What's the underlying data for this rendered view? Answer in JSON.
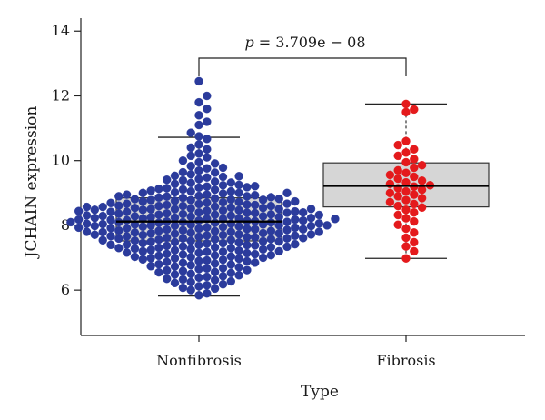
{
  "chart_data": {
    "type": "box-swarm",
    "xlabel": "Type",
    "ylabel": "JCHAIN expression",
    "ylim": [
      4.6,
      14.4
    ],
    "yticks": [
      "6",
      "8",
      "10",
      "12",
      "14"
    ],
    "categories": [
      "Nonfibrosis",
      "Fibrosis"
    ],
    "annotation": {
      "prefix": "p",
      "text": " = 3.709e − 08"
    },
    "groups": [
      {
        "name": "Nonfibrosis",
        "color": "#2b3b9c",
        "box": {
          "whisker_low": 5.82,
          "q1": 7.52,
          "median": 8.12,
          "q3": 8.85,
          "whisker_high": 10.72
        },
        "values": [
          5.84,
          5.9,
          6.0,
          6.07,
          6.12,
          6.18,
          6.22,
          6.27,
          6.31,
          6.35,
          6.39,
          6.43,
          6.46,
          6.5,
          6.53,
          6.56,
          6.59,
          6.62,
          6.65,
          6.68,
          6.71,
          6.74,
          6.77,
          6.8,
          6.82,
          6.85,
          6.87,
          6.9,
          6.92,
          6.95,
          6.97,
          6.99,
          7.02,
          7.04,
          7.06,
          7.08,
          7.1,
          7.12,
          7.14,
          7.16,
          7.18,
          7.2,
          7.22,
          7.24,
          7.26,
          7.28,
          7.3,
          7.32,
          7.33,
          7.35,
          7.37,
          7.39,
          7.4,
          7.42,
          7.44,
          7.45,
          7.47,
          7.49,
          7.5,
          7.52,
          7.53,
          7.55,
          7.56,
          7.58,
          7.59,
          7.61,
          7.62,
          7.64,
          7.65,
          7.67,
          7.68,
          7.7,
          7.71,
          7.72,
          7.74,
          7.75,
          7.76,
          7.78,
          7.79,
          7.8,
          7.82,
          7.83,
          7.84,
          7.86,
          7.87,
          7.88,
          7.89,
          7.91,
          7.92,
          7.93,
          7.94,
          7.96,
          7.97,
          7.98,
          7.99,
          8.0,
          8.02,
          8.03,
          8.04,
          8.05,
          8.06,
          8.08,
          8.09,
          8.1,
          8.11,
          8.12,
          8.14,
          8.15,
          8.16,
          8.17,
          8.18,
          8.2,
          8.21,
          8.22,
          8.23,
          8.24,
          8.26,
          8.27,
          8.28,
          8.29,
          8.3,
          8.32,
          8.33,
          8.34,
          8.35,
          8.37,
          8.38,
          8.39,
          8.4,
          8.42,
          8.43,
          8.44,
          8.46,
          8.47,
          8.48,
          8.5,
          8.51,
          8.52,
          8.54,
          8.55,
          8.57,
          8.58,
          8.6,
          8.61,
          8.63,
          8.64,
          8.66,
          8.67,
          8.69,
          8.71,
          8.72,
          8.74,
          8.76,
          8.78,
          8.79,
          8.81,
          8.83,
          8.85,
          8.87,
          8.89,
          8.91,
          8.93,
          8.95,
          8.98,
          9.0,
          9.02,
          9.05,
          9.07,
          9.1,
          9.13,
          9.15,
          9.18,
          9.21,
          9.25,
          9.28,
          9.31,
          9.35,
          9.39,
          9.43,
          9.48,
          9.53,
          9.58,
          9.63,
          9.69,
          9.76,
          9.83,
          9.91,
          10.0,
          10.1,
          10.22,
          10.35,
          10.5,
          10.67,
          10.86,
          11.1,
          11.4,
          11.8,
          12.45,
          6.05,
          6.15,
          6.25,
          6.33,
          6.41,
          6.48,
          6.55,
          6.61,
          6.67,
          6.73,
          6.79,
          6.84,
          6.89,
          6.94,
          6.98,
          7.03,
          7.07,
          7.11,
          7.15,
          7.19,
          7.23,
          7.27,
          7.31,
          7.34,
          7.38,
          7.41,
          7.45,
          7.48,
          7.51,
          7.54,
          7.57,
          7.6,
          7.63,
          7.66,
          7.69,
          7.72,
          7.75,
          7.77,
          7.8,
          7.83,
          7.85,
          7.88,
          7.9,
          7.93,
          7.95,
          7.98,
          8.0,
          8.03,
          8.05,
          8.08,
          8.1,
          8.13,
          8.15,
          8.18,
          8.2,
          8.23,
          8.25,
          8.28,
          8.31,
          8.33,
          8.36,
          8.39,
          8.42,
          8.45,
          8.48,
          8.51,
          8.54,
          8.57,
          8.6,
          8.63,
          8.67,
          8.7,
          8.74,
          8.78,
          8.82,
          8.86,
          8.9,
          8.95,
          9.0,
          9.05,
          9.11,
          9.17,
          9.24,
          9.32,
          9.41,
          9.52,
          9.64,
          9.78,
          9.95,
          10.15,
          10.4,
          10.75,
          11.2,
          11.6,
          12.0,
          7.0,
          7.2,
          7.4,
          7.6,
          7.8,
          8.0,
          8.2,
          8.4,
          8.6,
          8.8,
          9.0,
          9.2,
          9.5,
          7.3,
          7.7,
          8.1,
          8.5,
          8.9
        ]
      },
      {
        "name": "Fibrosis",
        "color": "#e41a1c",
        "box": {
          "whisker_low": 6.98,
          "q1": 8.57,
          "median": 9.22,
          "q3": 9.93,
          "whisker_high": 11.75
        },
        "values": [
          6.98,
          7.2,
          7.35,
          7.48,
          7.62,
          7.78,
          7.9,
          8.02,
          8.12,
          8.22,
          8.32,
          8.4,
          8.48,
          8.55,
          8.6,
          8.66,
          8.72,
          8.78,
          8.84,
          8.9,
          8.95,
          9.0,
          9.05,
          9.1,
          9.15,
          9.2,
          9.24,
          9.28,
          9.33,
          9.38,
          9.44,
          9.5,
          9.56,
          9.62,
          9.7,
          9.78,
          9.86,
          9.95,
          10.05,
          10.15,
          10.25,
          10.35,
          10.48,
          10.6,
          11.5,
          11.58,
          11.75
        ]
      }
    ]
  }
}
